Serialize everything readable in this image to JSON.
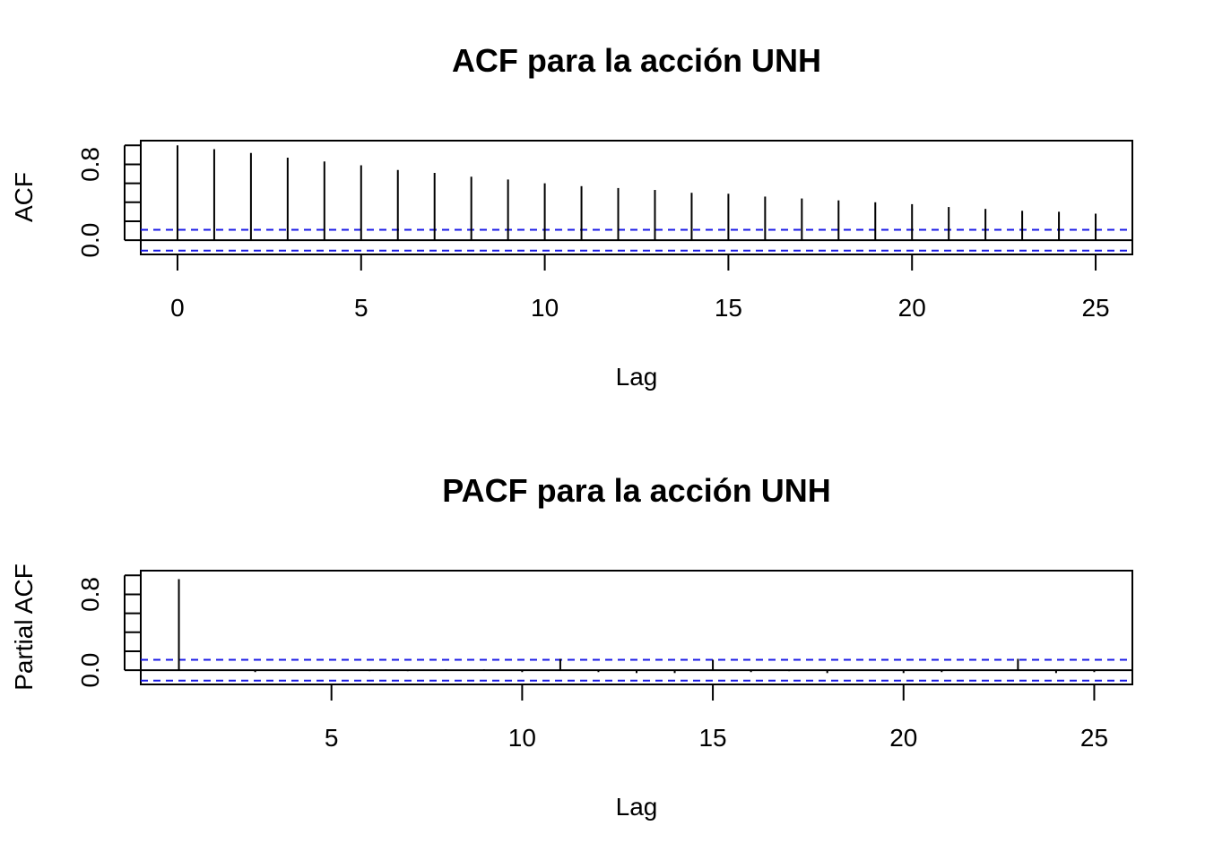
{
  "chart_data": [
    {
      "type": "bar",
      "title": "ACF para la acción UNH",
      "xlabel": "Lag",
      "ylabel": "ACF",
      "x": [
        0,
        1,
        2,
        3,
        4,
        5,
        6,
        7,
        8,
        9,
        10,
        11,
        12,
        13,
        14,
        15,
        16,
        17,
        18,
        19,
        20,
        21,
        22,
        23,
        24,
        25
      ],
      "values": [
        1.0,
        0.96,
        0.92,
        0.87,
        0.83,
        0.79,
        0.74,
        0.71,
        0.67,
        0.64,
        0.6,
        0.57,
        0.55,
        0.53,
        0.5,
        0.49,
        0.46,
        0.44,
        0.42,
        0.4,
        0.38,
        0.35,
        0.33,
        0.31,
        0.3,
        0.28
      ],
      "x_ticks": [
        0,
        5,
        10,
        15,
        20,
        25
      ],
      "y_ticks": [
        "0.0",
        "0.8"
      ],
      "conf_limits": [
        0.11,
        -0.11
      ],
      "xlim": [
        -1,
        26
      ],
      "ylim": [
        -0.15,
        1.05
      ]
    },
    {
      "type": "bar",
      "title": "PACF para la acción UNH",
      "xlabel": "Lag",
      "ylabel": "Partial ACF",
      "x": [
        1,
        2,
        3,
        4,
        5,
        6,
        7,
        8,
        9,
        10,
        11,
        12,
        13,
        14,
        15,
        16,
        17,
        18,
        19,
        20,
        21,
        22,
        23,
        24,
        25
      ],
      "values": [
        0.96,
        0.0,
        -0.02,
        0.0,
        0.0,
        -0.01,
        -0.01,
        0.01,
        0.01,
        -0.02,
        0.12,
        -0.02,
        -0.03,
        -0.03,
        0.11,
        -0.02,
        -0.01,
        -0.03,
        0.0,
        -0.03,
        -0.02,
        0.0,
        0.12,
        -0.03,
        -0.02
      ],
      "x_ticks": [
        5,
        10,
        15,
        20,
        25
      ],
      "y_ticks": [
        "0.0",
        "0.8"
      ],
      "conf_limits": [
        0.11,
        -0.11
      ],
      "xlim": [
        0,
        26
      ],
      "ylim": [
        -0.15,
        1.05
      ]
    }
  ]
}
